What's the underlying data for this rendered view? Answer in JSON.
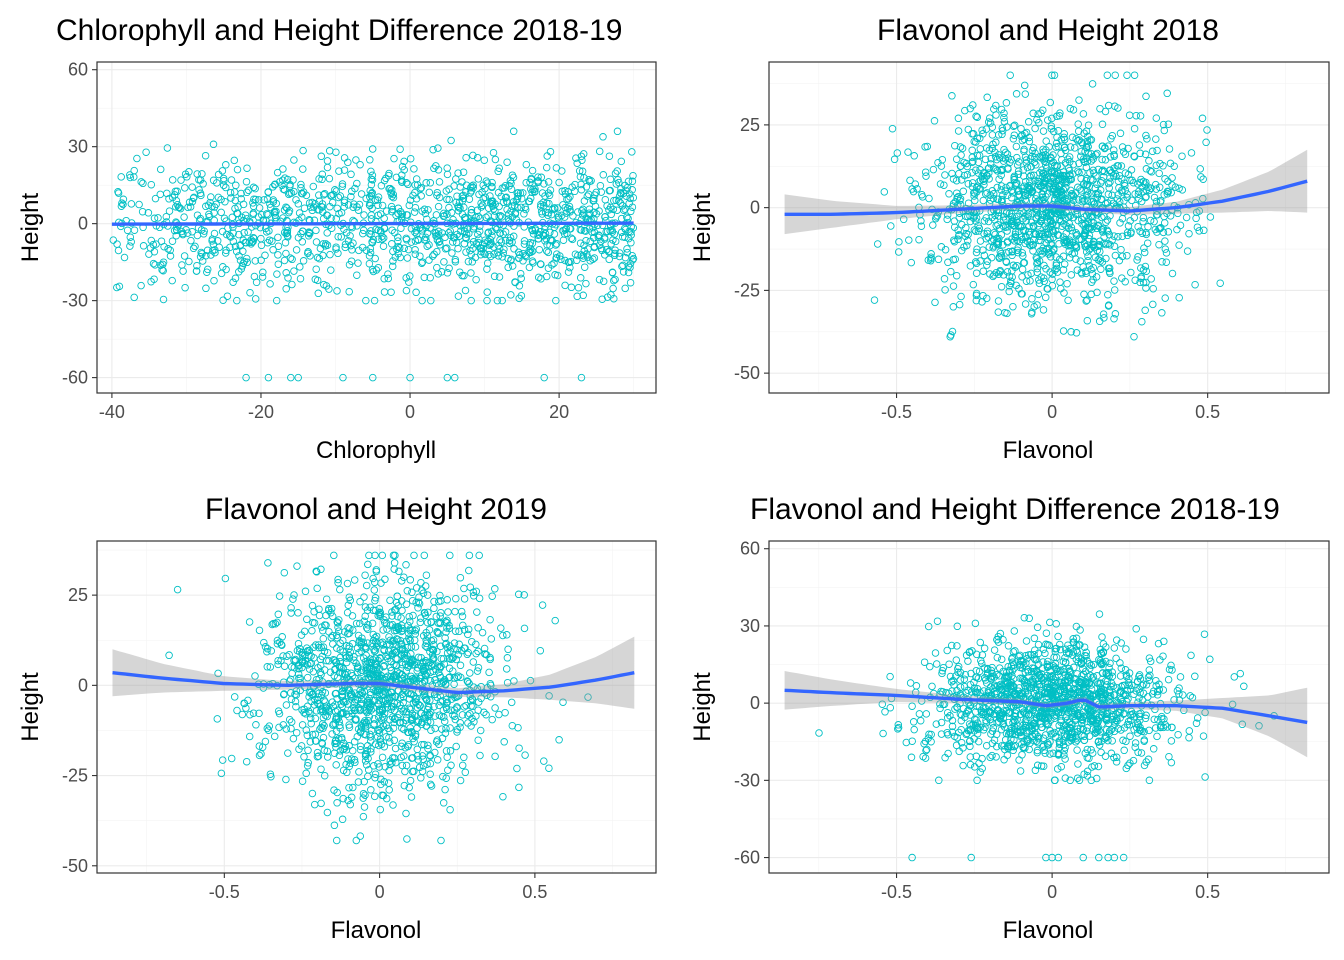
{
  "colors": {
    "points": "#00bfc4",
    "smooth": "#3366ff",
    "ribbon": "#999999"
  },
  "chart_data": [
    {
      "type": "scatter",
      "title": "Chlorophyll and Height Difference 2018-19",
      "xlabel": "Chlorophyll",
      "ylabel": "Height",
      "xlim": [
        -42,
        33
      ],
      "ylim": [
        -66,
        63
      ],
      "xticks": [
        -40,
        -20,
        0,
        20
      ],
      "yticks": [
        -60,
        -30,
        0,
        30,
        60
      ],
      "n_points": 1400,
      "point_cloud": {
        "x_range": [
          -40,
          30
        ],
        "y_center": 0,
        "y_spread": 13,
        "y_range": [
          -30,
          36
        ],
        "outlier_y": -60,
        "outlier_x": [
          -22,
          -19,
          -16,
          -15,
          -9,
          -5,
          0,
          5,
          6,
          18,
          23
        ]
      },
      "trend": {
        "method": "lm",
        "x": [
          -40,
          30
        ],
        "y": [
          -0.2,
          0.2
        ],
        "se": [
          0.5,
          0.5
        ]
      },
      "grid": true,
      "legend": "none"
    },
    {
      "type": "scatter",
      "title": "Flavonol and Height 2018",
      "xlabel": "Flavonol",
      "ylabel": "Height",
      "xlim": [
        -0.91,
        0.89
      ],
      "ylim": [
        -56,
        44
      ],
      "xticks": [
        -0.5,
        0.0,
        0.5
      ],
      "yticks": [
        -50,
        -25,
        0,
        25
      ],
      "n_points": 1400,
      "point_cloud": {
        "x_range": [
          -0.87,
          0.82
        ],
        "x_center": 0.0,
        "x_spread": 0.2,
        "y_center": 0,
        "y_spread": 14,
        "y_range": [
          -39,
          40
        ]
      },
      "trend": {
        "method": "loess",
        "x": [
          -0.86,
          -0.7,
          -0.5,
          -0.3,
          -0.1,
          0.0,
          0.1,
          0.25,
          0.4,
          0.55,
          0.7,
          0.82
        ],
        "y": [
          -2,
          -2,
          -1.5,
          -0.5,
          0.5,
          0.5,
          -0.5,
          -1,
          0,
          2,
          5,
          8
        ],
        "se": [
          6,
          4,
          2,
          1.2,
          1,
          1,
          1,
          1.2,
          1.8,
          3.5,
          6,
          9.5
        ]
      },
      "grid": true,
      "legend": "none"
    },
    {
      "type": "scatter",
      "title": "Flavonol and Height 2019",
      "xlabel": "Flavonol",
      "ylabel": "Height",
      "xlim": [
        -0.91,
        0.89
      ],
      "ylim": [
        -52,
        40
      ],
      "xticks": [
        -0.5,
        0.0,
        0.5
      ],
      "yticks": [
        -50,
        -25,
        0,
        25
      ],
      "n_points": 1400,
      "point_cloud": {
        "x_range": [
          -0.87,
          0.82
        ],
        "x_center": 0.0,
        "x_spread": 0.2,
        "y_center": 0,
        "y_spread": 15,
        "y_range": [
          -43,
          36
        ]
      },
      "trend": {
        "method": "loess",
        "x": [
          -0.86,
          -0.7,
          -0.5,
          -0.3,
          -0.1,
          0.0,
          0.1,
          0.25,
          0.4,
          0.55,
          0.7,
          0.82
        ],
        "y": [
          3.5,
          2,
          0.5,
          0,
          0.5,
          0.5,
          -0.5,
          -2,
          -1.5,
          -0.5,
          1.5,
          3.5
        ],
        "se": [
          6.5,
          4,
          2,
          1.2,
          1,
          1,
          1,
          1.2,
          1.8,
          3.5,
          6.5,
          10
        ]
      },
      "grid": true,
      "legend": "none"
    },
    {
      "type": "scatter",
      "title": "Flavonol and Height Difference 2018-19",
      "xlabel": "Flavonol",
      "ylabel": "Height",
      "xlim": [
        -0.91,
        0.89
      ],
      "ylim": [
        -66,
        63
      ],
      "xticks": [
        -0.5,
        0.0,
        0.5
      ],
      "yticks": [
        -60,
        -30,
        0,
        30,
        60
      ],
      "n_points": 1400,
      "point_cloud": {
        "x_range": [
          -0.87,
          0.82
        ],
        "x_center": 0.0,
        "x_spread": 0.2,
        "y_center": 0,
        "y_spread": 12,
        "y_range": [
          -30,
          37
        ],
        "outlier_y": -60,
        "outlier_x": [
          -0.45,
          -0.26,
          -0.02,
          0.0,
          0.02,
          0.1,
          0.15,
          0.18,
          0.2,
          0.23
        ]
      },
      "trend": {
        "method": "loess",
        "x": [
          -0.86,
          -0.7,
          -0.5,
          -0.3,
          -0.1,
          -0.02,
          0.05,
          0.1,
          0.15,
          0.25,
          0.4,
          0.55,
          0.7,
          0.82
        ],
        "y": [
          5,
          4,
          3,
          1.5,
          0.5,
          -1,
          0,
          1.5,
          -1.5,
          -1,
          -1,
          -2,
          -5,
          -7.5
        ],
        "se": [
          7.5,
          5,
          2.5,
          1.5,
          1.2,
          1.2,
          1.2,
          1.2,
          1.2,
          1.3,
          2,
          4,
          8,
          13.5
        ]
      },
      "grid": true,
      "legend": "none"
    }
  ]
}
